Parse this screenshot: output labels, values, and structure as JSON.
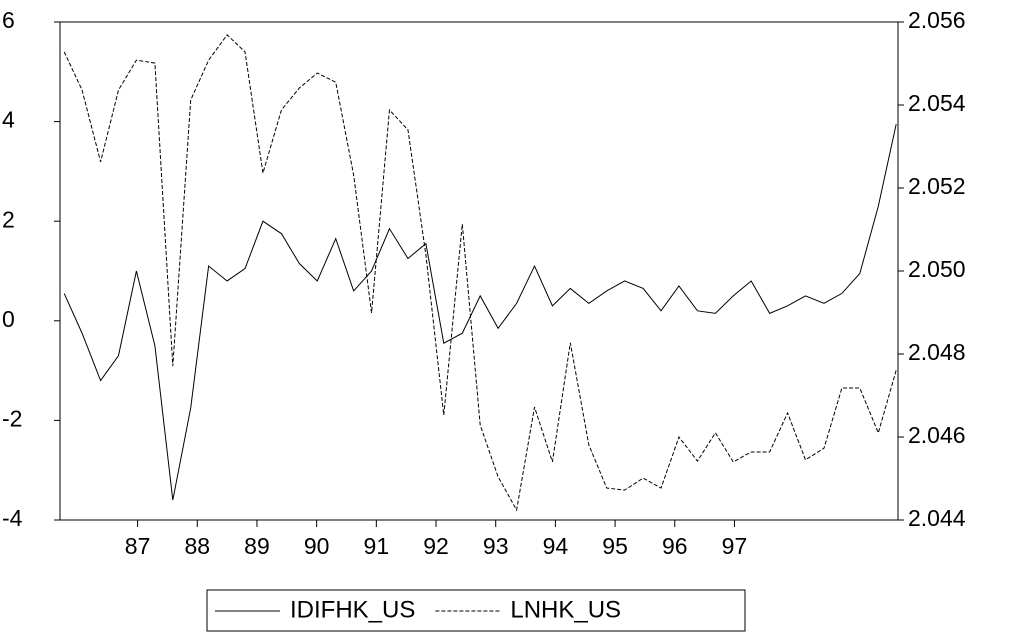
{
  "chart_data": {
    "type": "line",
    "x": [
      85.77,
      86.07,
      86.38,
      86.68,
      86.98,
      87.29,
      87.59,
      87.89,
      88.19,
      88.5,
      88.8,
      89.1,
      89.41,
      89.71,
      90.01,
      90.32,
      90.62,
      90.92,
      91.22,
      91.53,
      91.83,
      92.13,
      92.44,
      92.74,
      93.04,
      93.35,
      93.65,
      93.95,
      94.25,
      94.56,
      94.86,
      95.16,
      95.47,
      95.77,
      96.07,
      96.38,
      96.68,
      96.98,
      97.28,
      97.59,
      97.89,
      98.19,
      98.5,
      98.8,
      99.1,
      99.41,
      99.71
    ],
    "series": [
      {
        "name": "IDIFHK_US",
        "color": "#000000",
        "dash": "solid",
        "values": [
          0.55,
          -0.25,
          -1.2,
          -0.7,
          1.0,
          -0.5,
          -3.6,
          -1.75,
          1.1,
          0.8,
          1.05,
          2.0,
          1.75,
          1.15,
          0.8,
          1.65,
          0.6,
          1.0,
          1.85,
          1.25,
          1.55,
          -0.45,
          -0.25,
          0.5,
          -0.15,
          0.35,
          1.1,
          0.3,
          0.65,
          0.35,
          0.6,
          0.8,
          0.65,
          0.2,
          0.7,
          0.2,
          0.15,
          0.5,
          0.8,
          0.15,
          0.3,
          0.5,
          0.35,
          0.55,
          0.95,
          2.3,
          3.95
        ]
      },
      {
        "name": "LNHK_US",
        "color": "#000000",
        "dash": "dashed",
        "axis": "y2",
        "values": [
          2.05528,
          2.05436,
          2.05263,
          2.05436,
          2.05508,
          2.05501,
          2.04771,
          2.05412,
          2.05508,
          2.05569,
          2.05528,
          2.05236,
          2.05388,
          2.05441,
          2.05477,
          2.05455,
          2.05231,
          2.04899,
          2.05388,
          2.0534,
          2.05039,
          2.04653,
          2.05113,
          2.04629,
          2.04504,
          2.04424,
          2.04672,
          2.0454,
          2.04827,
          2.04581,
          2.04477,
          2.04472,
          2.04501,
          2.04477,
          2.046,
          2.04542,
          2.0461,
          2.0454,
          2.04564,
          2.04564,
          2.04658,
          2.04545,
          2.04573,
          2.04718,
          2.04718,
          2.0461,
          2.04761
        ]
      }
    ],
    "xlim": [
      85.7,
      99.74
    ],
    "xticks": [
      87,
      88,
      89,
      90,
      91,
      92,
      93,
      94,
      95,
      96,
      97
    ],
    "ylim": [
      -4,
      6
    ],
    "yticks": [
      -4,
      -2,
      0,
      2,
      4,
      6
    ],
    "y2lim": [
      2.044,
      2.056
    ],
    "y2ticks": [
      2.044,
      2.046,
      2.048,
      {
        "value": 2.05,
        "label": "2.050"
      },
      2.052,
      2.054,
      2.056
    ],
    "legend": "bottom"
  }
}
